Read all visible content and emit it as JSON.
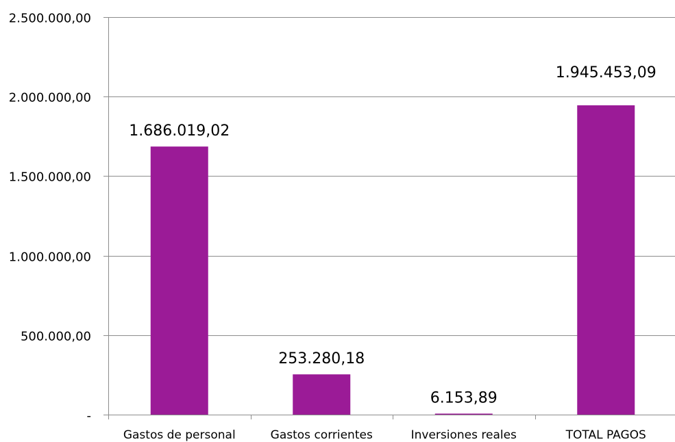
{
  "chart_data": {
    "type": "bar",
    "categories": [
      "Gastos de personal",
      "Gastos corrientes",
      "Inversiones reales",
      "TOTAL PAGOS"
    ],
    "values": [
      1686019.02,
      253280.18,
      6153.89,
      1945453.09
    ],
    "data_labels": [
      "1.686.019,02",
      "253.280,18",
      "6.153,89",
      "1.945.453,09"
    ],
    "y_ticks": [
      0,
      500000,
      1000000,
      1500000,
      2000000,
      2500000
    ],
    "y_tick_labels": [
      "-",
      "500.000,00",
      "1.000.000,00",
      "1.500.000,00",
      "2.000.000,00",
      "2.500.000,00"
    ],
    "ylim": [
      0,
      2500000
    ],
    "grid": true,
    "bar_color": "#9B1B97",
    "title": "",
    "xlabel": "",
    "ylabel": ""
  }
}
